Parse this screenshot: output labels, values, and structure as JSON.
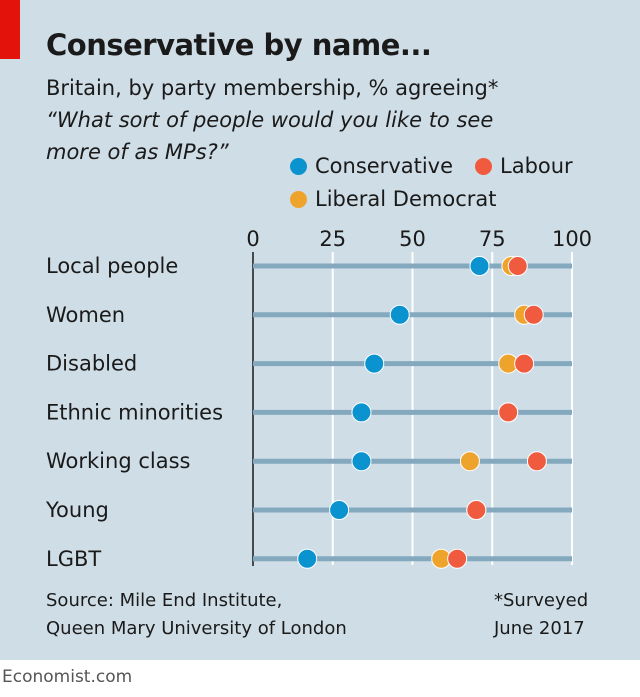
{
  "header": {
    "title": "Conservative by name...",
    "subtitle": "Britain, by party membership, % agreeing*",
    "question_line1": "“What sort of people would you like to see",
    "question_line2": "more of as MPs?”"
  },
  "colors": {
    "Conservative": "#0a93cf",
    "Labour": "#f05a3f",
    "Liberal Democrat": "#eea42c",
    "brand": "#e3120b"
  },
  "chart_data": {
    "type": "dot",
    "title": "Conservative by name...",
    "xlim": [
      0,
      100
    ],
    "xticks": [
      "0",
      "25",
      "50",
      "75",
      "100"
    ],
    "grid": true,
    "legend_position": "top-right",
    "categories": [
      "Local people",
      "Women",
      "Disabled",
      "Ethnic minorities",
      "Working class",
      "Young",
      "LGBT"
    ],
    "series": [
      {
        "name": "Conservative",
        "values": [
          71,
          46,
          38,
          34,
          34,
          27,
          17
        ]
      },
      {
        "name": "Labour",
        "values": [
          83,
          88,
          85,
          80,
          89,
          70,
          64
        ]
      },
      {
        "name": "Liberal Democrat",
        "values": [
          81,
          85,
          80,
          80,
          68,
          70,
          59
        ]
      }
    ]
  },
  "footer": {
    "source_line1": "Source: Mile End Institute,",
    "source_line2": "Queen Mary University of London",
    "note_line1": "*Surveyed",
    "note_line2": "June 2017",
    "brand": "Economist.com"
  }
}
